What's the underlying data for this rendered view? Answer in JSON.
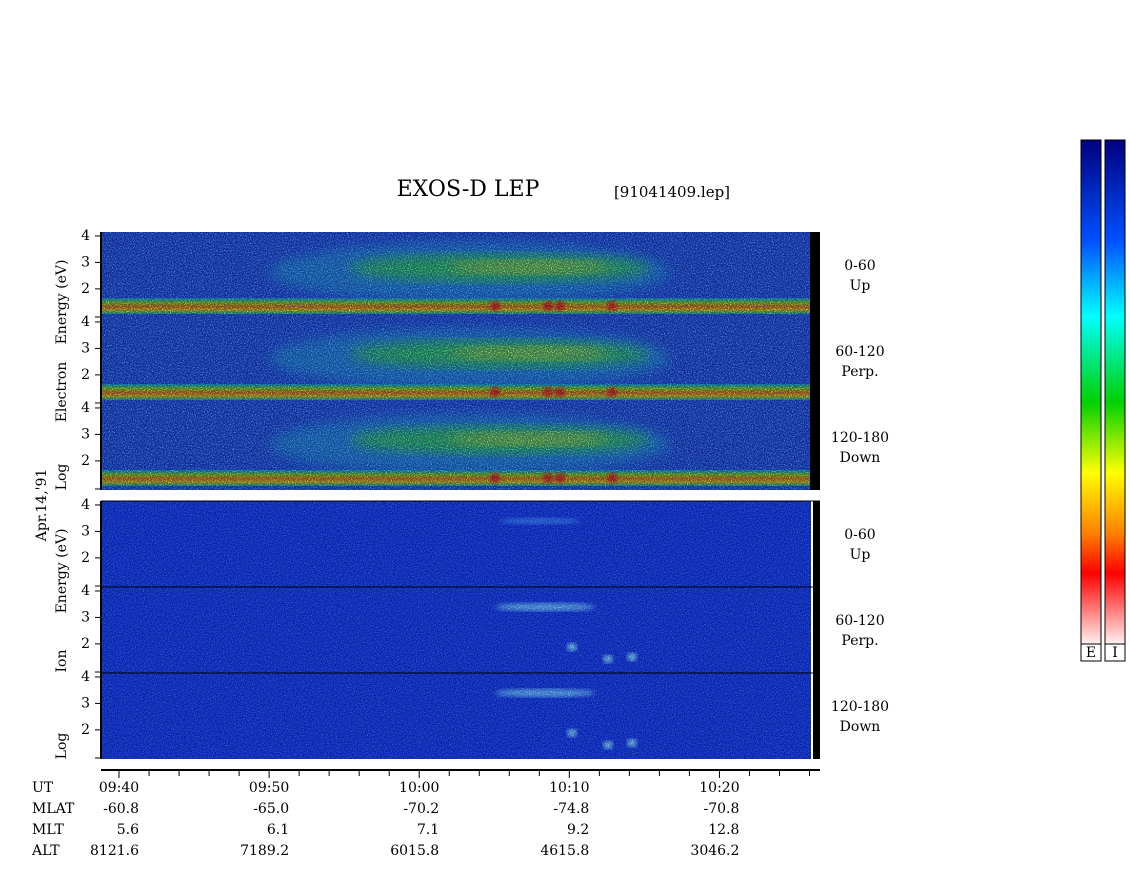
{
  "chart_data": {
    "type": "spectrogram",
    "title": "EXOS-D LEP",
    "subtitle": "[91041409.lep]",
    "date": "Apr.14,'91",
    "ylim": [
      0.9,
      4.15
    ],
    "yticks": [
      2,
      3,
      4
    ],
    "panels": [
      {
        "species": "electron",
        "ylabel": [
          "Log",
          "Electron",
          "Energy (eV)"
        ],
        "bands": [
          {
            "pitch": "0-60",
            "direction": "Up"
          },
          {
            "pitch": "60-120",
            "direction": "Perp."
          },
          {
            "pitch": "120-180",
            "direction": "Down"
          }
        ]
      },
      {
        "species": "ion",
        "ylabel": [
          "Log",
          "Ion",
          "Energy (eV)"
        ],
        "bands": [
          {
            "pitch": "0-60",
            "direction": "Up"
          },
          {
            "pitch": "60-120",
            "direction": "Perp."
          },
          {
            "pitch": "120-180",
            "direction": "Down"
          }
        ]
      }
    ],
    "xlim": [
      578.8,
      626.7
    ],
    "xticks": [
      {
        "value": 580,
        "label": "09:40"
      },
      {
        "value": 590,
        "label": "09:50"
      },
      {
        "value": 600,
        "label": "10:00"
      },
      {
        "value": 610,
        "label": "10:10"
      },
      {
        "value": 620,
        "label": "10:20"
      }
    ],
    "xminor": [
      582,
      584,
      586,
      588,
      592,
      594,
      596,
      598,
      602,
      604,
      606,
      608,
      612,
      614,
      616,
      618,
      622,
      624,
      626
    ],
    "xlabel": "UT",
    "ephemeris": [
      {
        "label": "MLAT",
        "values": [
          "-60.8",
          "-65.0",
          "-70.2",
          "-74.8",
          "-70.8"
        ]
      },
      {
        "label": "MLT",
        "values": [
          "5.6",
          "6.1",
          "7.1",
          "9.2",
          "12.8"
        ]
      },
      {
        "label": "ALT",
        "values": [
          "8121.6",
          "7189.2",
          "6015.8",
          "4615.8",
          "3046.2"
        ]
      }
    ],
    "colorbars": [
      "E",
      "I"
    ]
  }
}
